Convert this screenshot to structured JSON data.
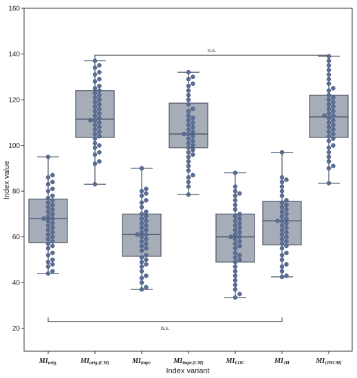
{
  "chart_data": {
    "type": "box",
    "ylabel": "Index value",
    "xlabel": "Index variant",
    "ylim": [
      10,
      160
    ],
    "yticks": [
      20,
      40,
      60,
      80,
      100,
      120,
      140,
      160
    ],
    "categories": [
      {
        "main": "MI",
        "sub": "orig."
      },
      {
        "main": "MI",
        "sub": "orig.(CM)"
      },
      {
        "main": "MI",
        "sub": "impr."
      },
      {
        "main": "MI",
        "sub": "impr.(CM)"
      },
      {
        "main": "MI",
        "sub": "LOC"
      },
      {
        "main": "MI",
        "sub": "JH"
      },
      {
        "main": "MI",
        "sub": "(JHCM)"
      }
    ],
    "boxes": [
      {
        "whisker_low": 44,
        "q1": 57.5,
        "median": 68,
        "q3": 76.5,
        "whisker_high": 95
      },
      {
        "whisker_low": 83,
        "q1": 103.5,
        "median": 111.5,
        "q3": 124,
        "whisker_high": 137
      },
      {
        "whisker_low": 37,
        "q1": 51.5,
        "median": 61,
        "q3": 70,
        "whisker_high": 90
      },
      {
        "whisker_low": 78.5,
        "q1": 99,
        "median": 105,
        "q3": 118.5,
        "whisker_high": 132
      },
      {
        "whisker_low": 33.5,
        "q1": 49,
        "median": 60,
        "q3": 70,
        "whisker_high": 88
      },
      {
        "whisker_low": 42.5,
        "q1": 56.5,
        "median": 67,
        "q3": 75.5,
        "whisker_high": 97
      },
      {
        "whisker_low": 83.5,
        "q1": 103.5,
        "median": 112.5,
        "q3": 122,
        "whisker_high": 139
      }
    ],
    "points": [
      [
        44,
        45,
        47,
        48,
        49,
        50,
        52,
        53,
        55,
        56,
        57,
        58,
        59,
        60,
        61,
        62,
        63,
        64,
        65,
        66,
        67,
        68,
        68,
        69,
        70,
        71,
        72,
        73,
        74,
        75,
        76,
        77,
        78,
        80,
        81,
        83,
        84,
        86,
        87,
        95
      ],
      [
        83,
        92,
        93,
        96,
        97,
        99,
        100,
        101,
        103,
        104,
        105,
        106,
        107,
        108,
        109,
        110,
        111,
        111,
        112,
        113,
        114,
        115,
        116,
        117,
        118,
        119,
        120,
        121,
        122,
        123,
        124,
        125,
        126,
        128,
        129,
        131,
        132,
        134,
        135,
        137
      ],
      [
        37,
        38,
        40,
        42,
        43,
        45,
        47,
        48,
        49,
        50,
        51,
        52,
        54,
        55,
        56,
        57,
        58,
        59,
        60,
        61,
        61,
        62,
        63,
        64,
        65,
        66,
        67,
        68,
        69,
        70,
        71,
        73,
        75,
        76,
        78,
        79,
        80,
        81,
        90
      ],
      [
        78.5,
        82,
        84,
        86,
        87,
        89,
        91,
        93,
        95,
        96,
        97,
        98,
        99,
        100,
        101,
        102,
        103,
        104,
        105,
        105,
        106,
        107,
        108,
        109,
        110,
        111,
        112,
        113,
        115,
        116,
        118,
        120,
        122,
        124,
        126,
        127,
        129,
        130,
        132
      ],
      [
        33.5,
        35,
        37,
        39,
        41,
        43,
        45,
        47,
        49,
        50,
        51,
        52,
        53,
        55,
        56,
        57,
        58,
        59,
        60,
        60,
        61,
        62,
        63,
        64,
        65,
        66,
        67,
        68,
        69,
        70,
        72,
        74,
        76,
        78,
        79,
        80,
        82,
        88
      ],
      [
        42.5,
        43,
        45,
        47,
        48,
        50,
        52,
        53,
        55,
        56,
        57,
        58,
        59,
        60,
        61,
        62,
        63,
        64,
        65,
        66,
        67,
        67,
        68,
        69,
        70,
        71,
        72,
        73,
        74,
        75,
        76,
        78,
        80,
        82,
        84,
        85,
        86,
        97
      ],
      [
        83.5,
        90,
        91,
        93,
        95,
        97,
        99,
        100,
        102,
        103,
        104,
        105,
        106,
        107,
        108,
        109,
        110,
        111,
        112,
        113,
        113,
        114,
        115,
        116,
        117,
        118,
        119,
        120,
        121,
        122,
        124,
        125,
        127,
        129,
        131,
        133,
        135,
        137,
        139
      ]
    ],
    "annotations": [
      {
        "text": "n.s.",
        "from": 1,
        "to": 6,
        "y": 139.5,
        "direction": "down"
      },
      {
        "text": "n.s.",
        "from": 0,
        "to": 5,
        "y": 23,
        "direction": "up"
      }
    ],
    "colors": {
      "box_fill": "#a6adb8",
      "box_edge": "#4a5466",
      "point": "#5a6f96",
      "point_edge": "#3d4f73"
    }
  }
}
